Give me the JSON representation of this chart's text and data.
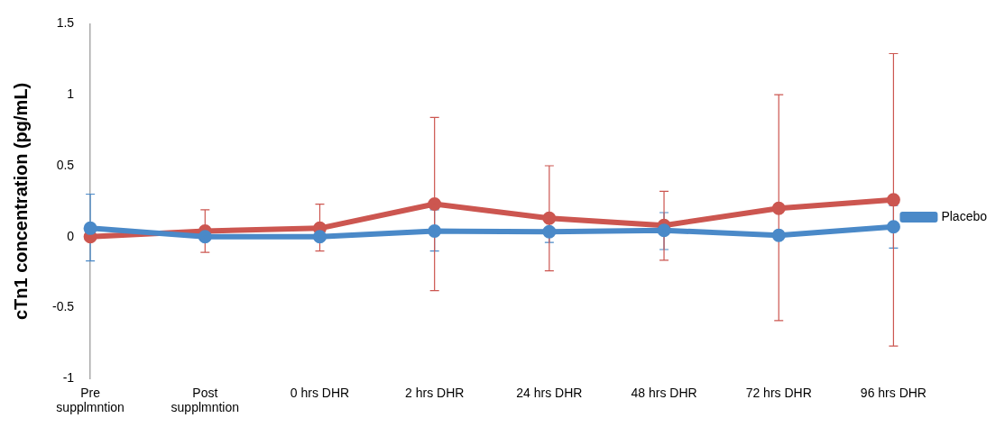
{
  "chart_data": {
    "type": "line",
    "ylabel": "cTn1 concentration (pg/mL)",
    "categories": [
      "Pre supplmntion",
      "Post supplmntion",
      "0 hrs DHR",
      "2 hrs DHR",
      "24 hrs DHR",
      "48 hrs DHR",
      "72 hrs DHR",
      "96 hrs DHR"
    ],
    "series": [
      {
        "name": "Placebo",
        "color": "#4a89c8",
        "values": [
          0.06,
          0.0,
          0.0,
          0.04,
          0.035,
          0.045,
          0.01,
          0.07
        ],
        "errors": [
          [
            -0.17,
            0.3
          ],
          null,
          null,
          [
            -0.1,
            0.19
          ],
          [
            -0.04,
            0.11
          ],
          [
            -0.09,
            0.17
          ],
          [
            -0.015,
            0.04
          ],
          [
            -0.08,
            0.22
          ]
        ]
      },
      {
        "color": "#cc5650",
        "values": [
          0.0,
          0.04,
          0.06,
          0.23,
          0.13,
          0.08,
          0.2,
          0.26
        ],
        "errors": [
          null,
          [
            -0.11,
            0.19
          ],
          [
            -0.1,
            0.23
          ],
          [
            -0.38,
            0.84
          ],
          [
            -0.24,
            0.5
          ],
          [
            -0.165,
            0.32
          ],
          [
            -0.59,
            1.0
          ],
          [
            -0.77,
            1.29
          ]
        ]
      }
    ],
    "ylim": [
      -1,
      1.5
    ],
    "yticks": [
      -1,
      -0.5,
      0,
      0.5,
      1,
      1.5
    ],
    "grid": false,
    "legend": "right",
    "marker": "circle",
    "line_style": "solid"
  }
}
